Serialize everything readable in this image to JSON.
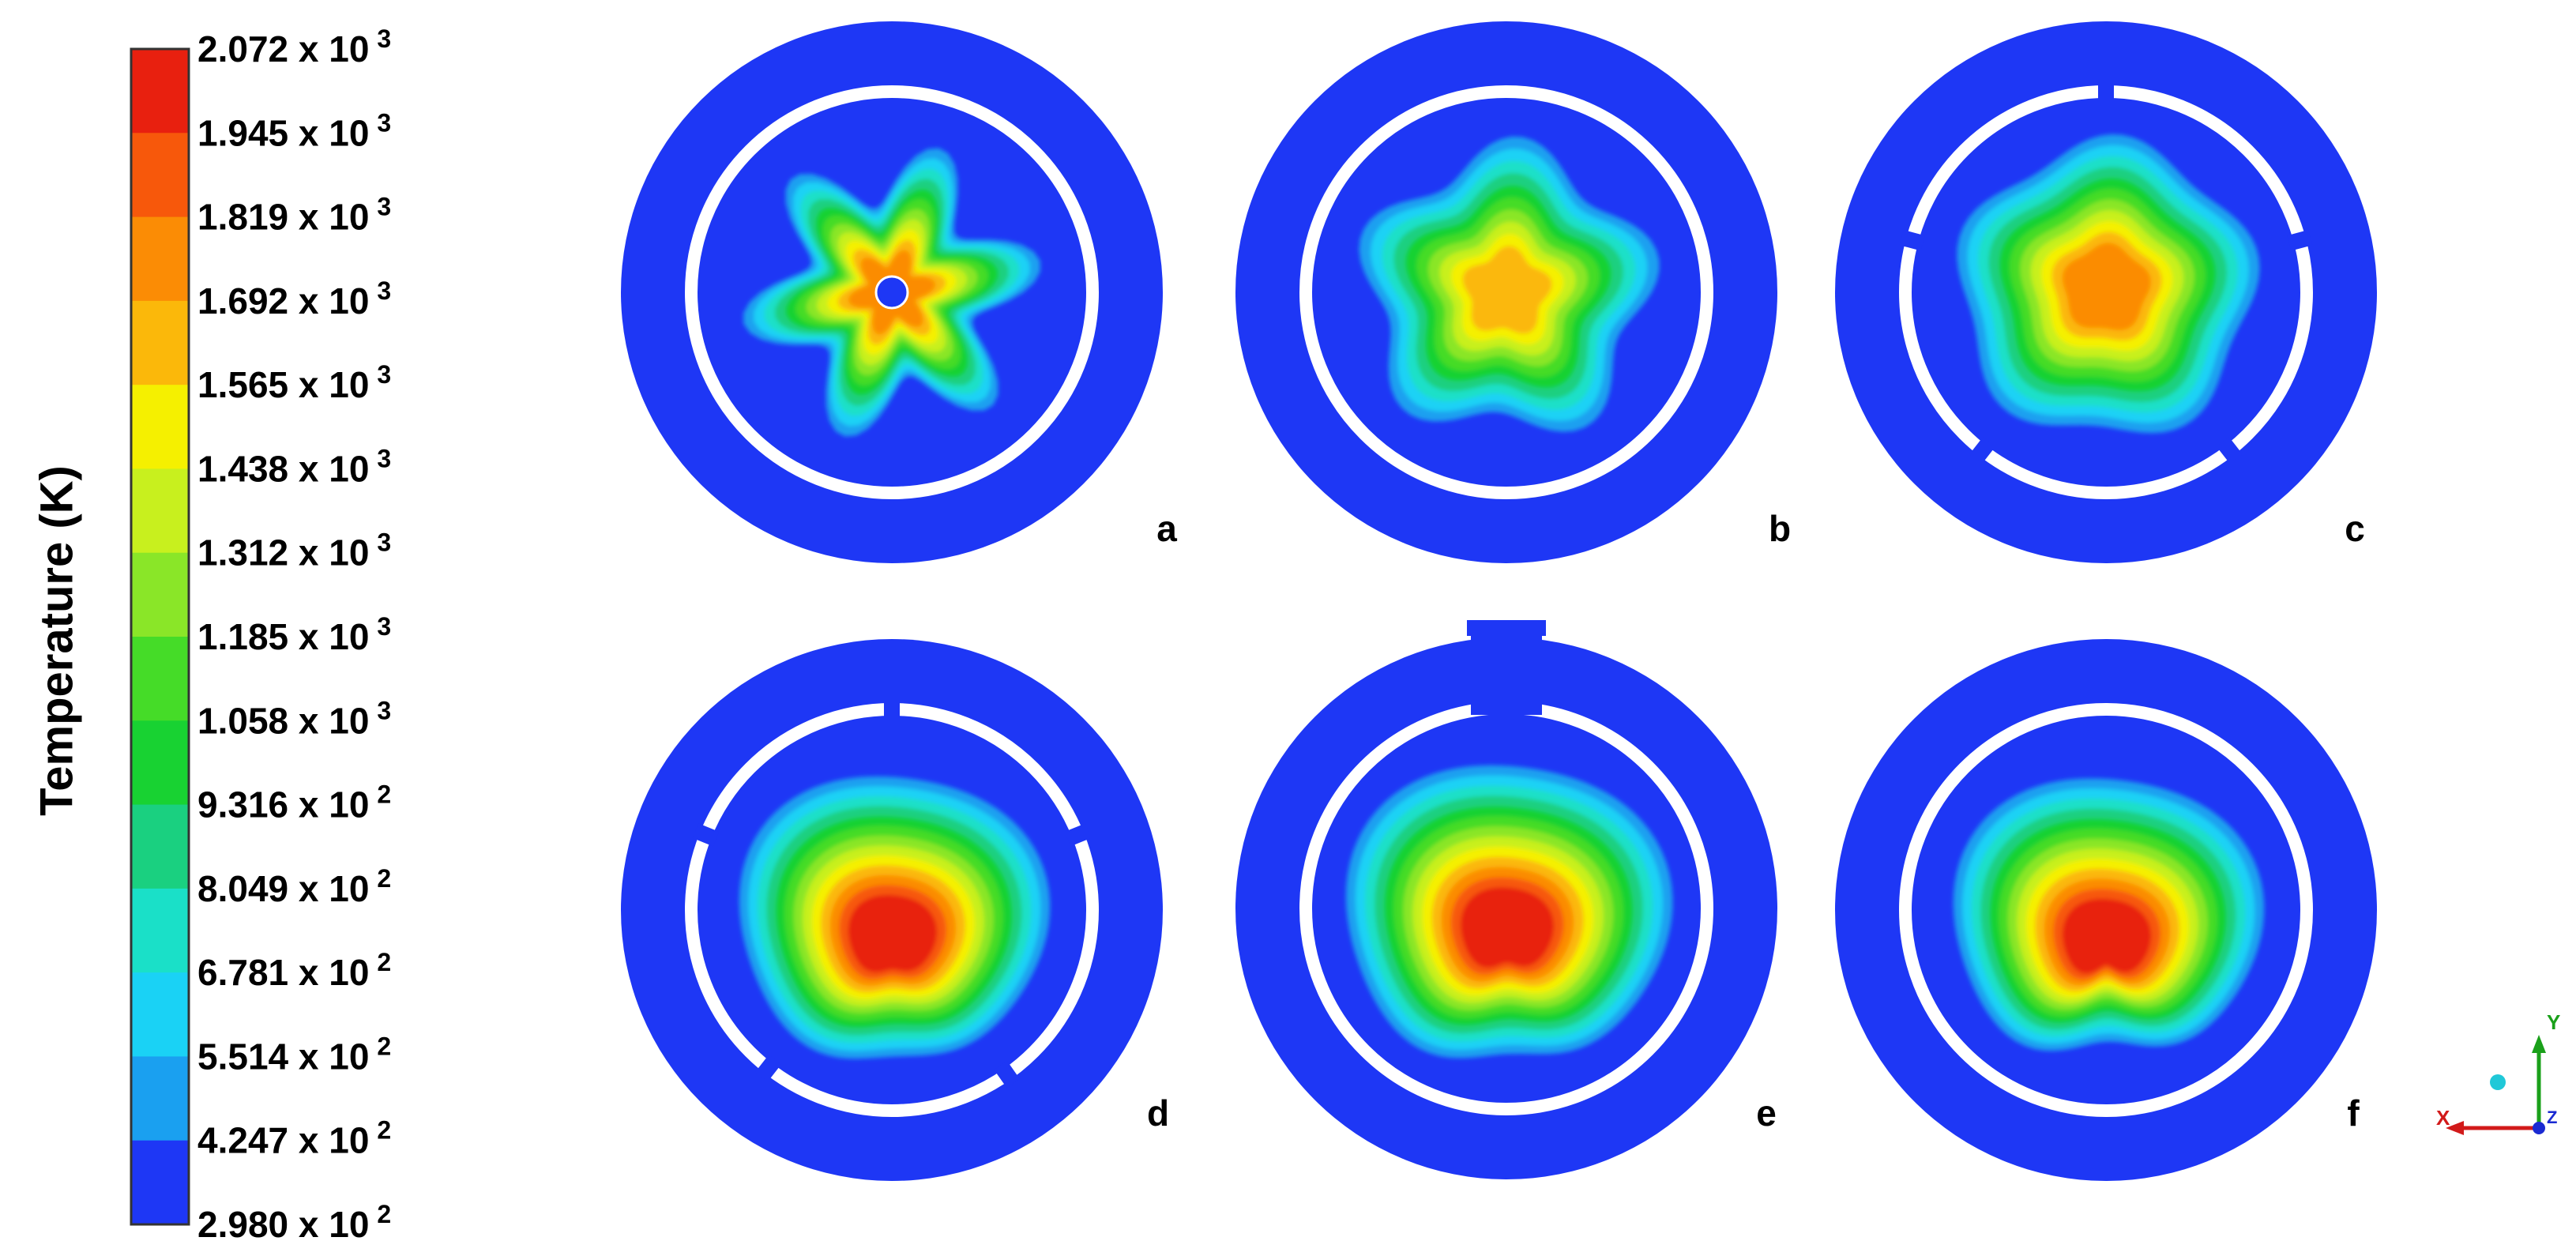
{
  "legend": {
    "title": "Temperature (K)",
    "labels": [
      {
        "mantissa": "2.072 x 10",
        "exponent": "3"
      },
      {
        "mantissa": "1.945 x 10",
        "exponent": "3"
      },
      {
        "mantissa": "1.819 x 10",
        "exponent": "3"
      },
      {
        "mantissa": "1.692 x 10",
        "exponent": "3"
      },
      {
        "mantissa": "1.565 x 10",
        "exponent": "3"
      },
      {
        "mantissa": "1.438 x 10",
        "exponent": "3"
      },
      {
        "mantissa": "1.312 x 10",
        "exponent": "3"
      },
      {
        "mantissa": "1.185 x 10",
        "exponent": "3"
      },
      {
        "mantissa": "1.058 x 10",
        "exponent": "3"
      },
      {
        "mantissa": "9.316 x 10",
        "exponent": "2"
      },
      {
        "mantissa": "8.049 x 10",
        "exponent": "2"
      },
      {
        "mantissa": "6.781 x 10",
        "exponent": "2"
      },
      {
        "mantissa": "5.514 x 10",
        "exponent": "2"
      },
      {
        "mantissa": "4.247 x 10",
        "exponent": "2"
      },
      {
        "mantissa": "2.980 x 10",
        "exponent": "2"
      }
    ],
    "colors": [
      "#e8200f",
      "#f7580b",
      "#fb8c05",
      "#fbb80a",
      "#f5f000",
      "#c8f01e",
      "#8ae628",
      "#45dc28",
      "#18d232",
      "#1ad080",
      "#1ae0c8",
      "#1ad2f5",
      "#1aa0f0",
      "#1e37f5"
    ]
  },
  "panels": [
    {
      "label": "a"
    },
    {
      "label": "b"
    },
    {
      "label": "c"
    },
    {
      "label": "d"
    },
    {
      "label": "e"
    },
    {
      "label": "f"
    }
  ],
  "triad": {
    "x": "X",
    "y": "Y",
    "z": "Z"
  }
}
